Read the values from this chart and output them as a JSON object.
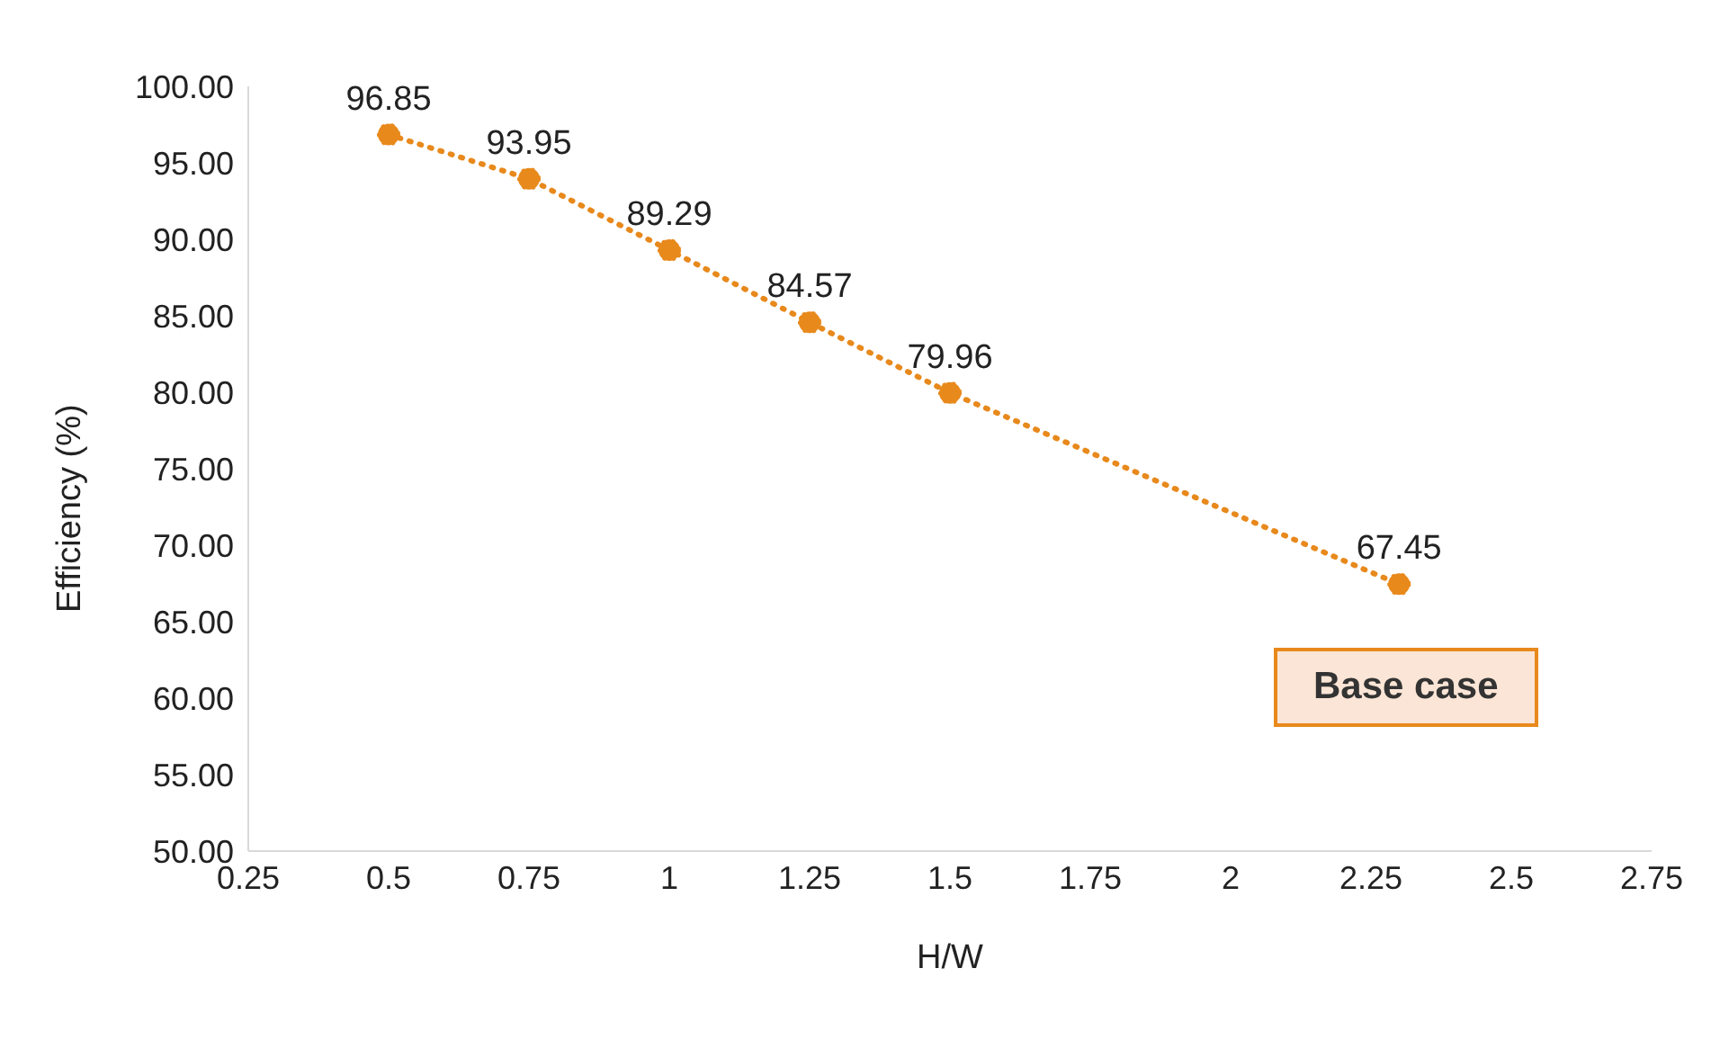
{
  "chart_data": {
    "type": "line",
    "xlabel": "H/W",
    "ylabel": "Efficiency (%)",
    "x": [
      0.5,
      0.75,
      1,
      1.25,
      1.5,
      2.3
    ],
    "series": [
      {
        "color": "#e8891c",
        "values": [
          96.85,
          93.95,
          89.29,
          84.57,
          79.96,
          67.45
        ]
      }
    ],
    "xlim": [
      0.25,
      2.75
    ],
    "xticks": [
      0.25,
      0.5,
      0.75,
      1,
      1.25,
      1.5,
      1.75,
      2,
      2.25,
      2.5,
      2.75
    ],
    "ylim": [
      50,
      100
    ],
    "yticks": [
      {
        "value": 50,
        "label": "50.00"
      },
      {
        "value": 55,
        "label": "55.00"
      },
      {
        "value": 60,
        "label": "60.00"
      },
      {
        "value": 65,
        "label": "65.00"
      },
      {
        "value": 70,
        "label": "70.00"
      },
      {
        "value": 75,
        "label": "75.00"
      },
      {
        "value": 80,
        "label": "80.00"
      },
      {
        "value": 85,
        "label": "85.00"
      },
      {
        "value": 90,
        "label": "90.00"
      },
      {
        "value": 95,
        "label": "95.00"
      },
      {
        "value": 100,
        "label": "100.00"
      }
    ],
    "annotations": [
      "Base case"
    ],
    "data_labels": true,
    "marker": "circle",
    "line_style": "dotted",
    "grid": false,
    "legend": false
  }
}
